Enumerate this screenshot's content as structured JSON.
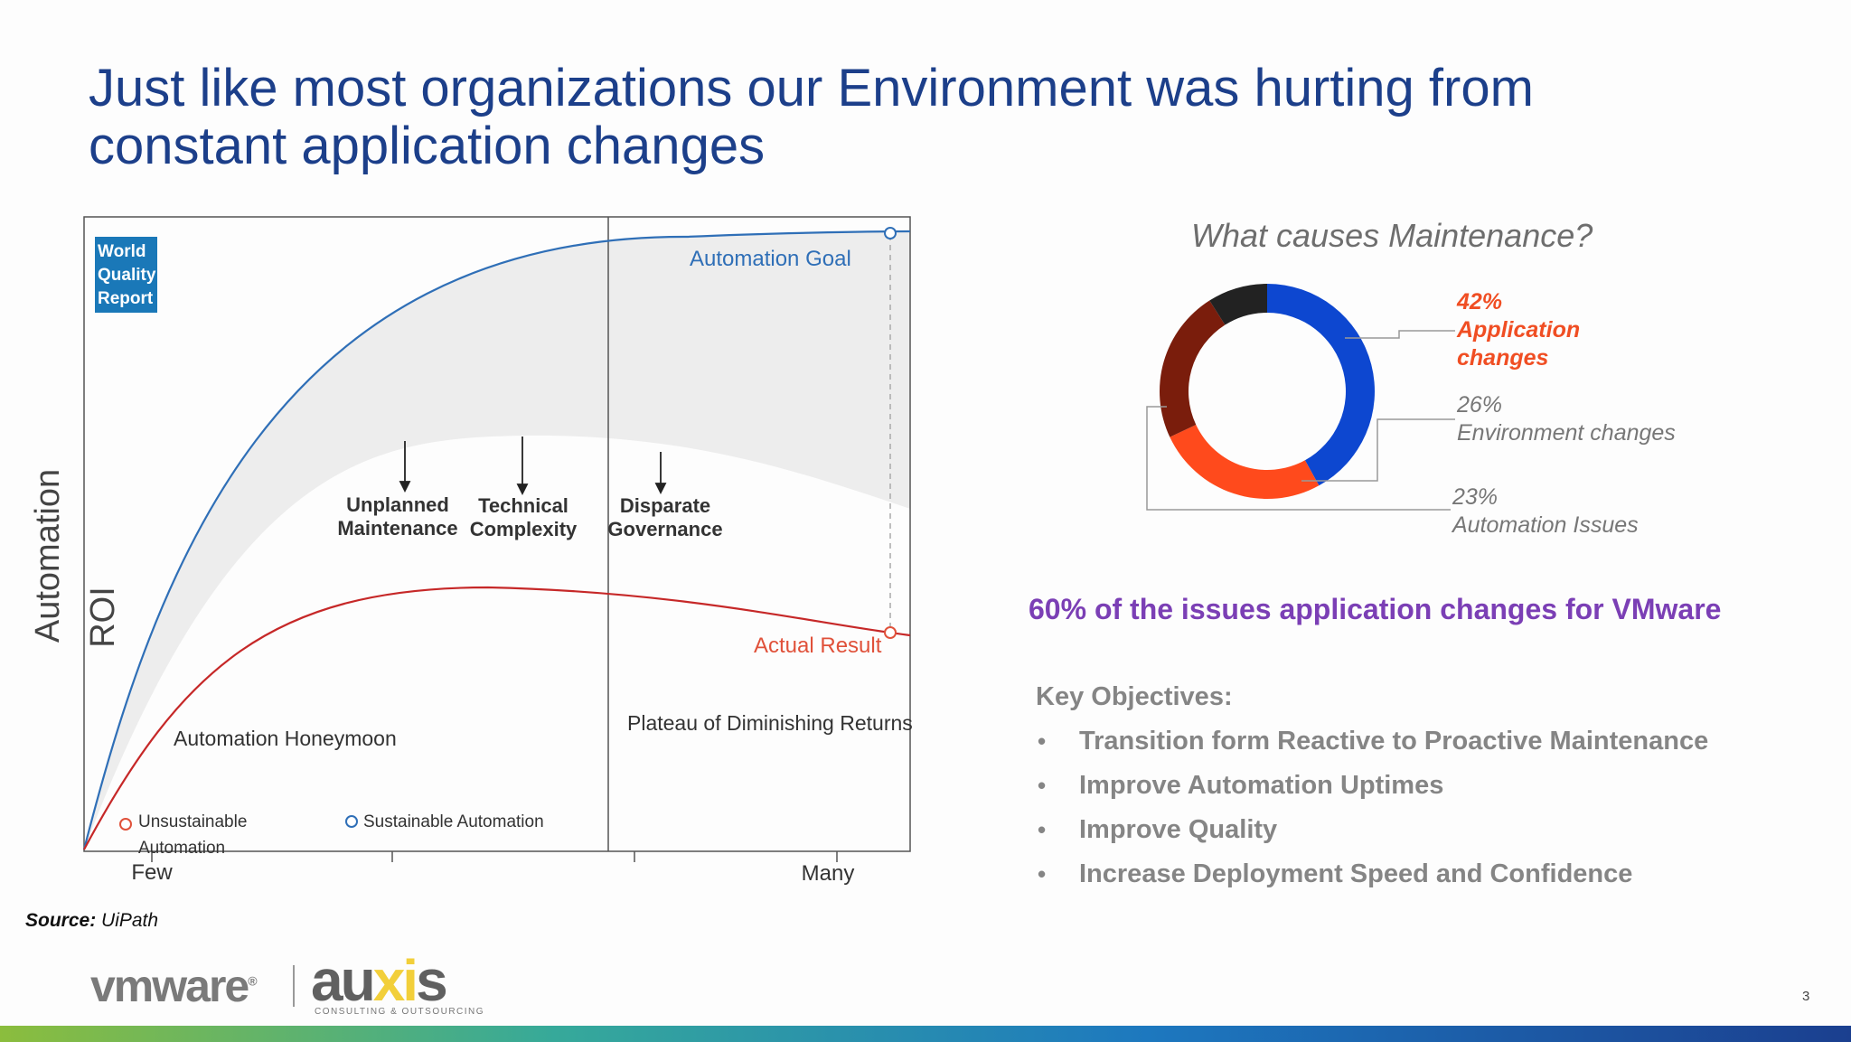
{
  "slide": {
    "title_line1": "Just like most organizations our Environment was hurting from",
    "title_line2": "constant application changes",
    "page_number": "3"
  },
  "curve_chart": {
    "badge_lines": [
      "World",
      "Quality",
      "Report"
    ],
    "y_axis_label_1": "Automation",
    "y_axis_label_2": "ROI",
    "x_tick_labels": [
      "Few",
      "Many"
    ],
    "goal_label": "Automation Goal",
    "actual_label": "Actual Result",
    "causes": [
      {
        "line1": "Unplanned",
        "line2": "Maintenance"
      },
      {
        "line1": "Technical",
        "line2": "Complexity"
      },
      {
        "line1": "Disparate",
        "line2": "Governance"
      }
    ],
    "phase_1": "Automation Honeymoon",
    "phase_2": "Plateau of Diminishing Returns",
    "legend_unsustainable_1": "Unsustainable",
    "legend_unsustainable_2": "Automation",
    "legend_sustainable": "Sustainable Automation",
    "colors": {
      "goal": "#2f6fb7",
      "actual": "#c62828",
      "band": "#eeeeee",
      "marker_red": "#e0513a",
      "marker_blue": "#2f6fb7"
    }
  },
  "donut": {
    "title": "What causes Maintenance?",
    "segments": [
      {
        "pct": "42%",
        "label": "Application changes",
        "value": 42,
        "color": "#0d47d0"
      },
      {
        "pct": "26%",
        "label": "Environment changes",
        "value": 26,
        "color": "#ff4a1c"
      },
      {
        "pct": "23%",
        "label": "Automation Issues",
        "value": 23,
        "color": "#7a1d0c"
      },
      {
        "value": 9,
        "color": "#222222"
      }
    ],
    "legend_app_line2": "Application",
    "legend_app_line3": "changes"
  },
  "highlight": "60% of the issues application changes for VMware",
  "objectives": {
    "heading": "Key Objectives:",
    "items": [
      "Transition form Reactive to Proactive Maintenance",
      "Improve Automation Uptimes",
      "Improve Quality",
      "Increase Deployment Speed and Confidence"
    ]
  },
  "source": {
    "label": "Source:",
    "value": "UiPath"
  },
  "logos": {
    "vmware": "vmware",
    "reg": "®",
    "auxis_a": "au",
    "auxis_xi": "xi",
    "auxis_s": "s",
    "auxis_sub": "CONSULTING & OUTSOURCING"
  }
}
